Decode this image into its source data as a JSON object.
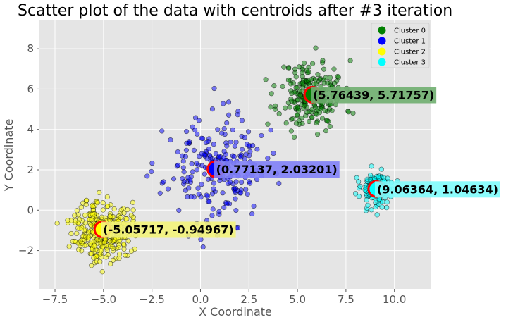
{
  "chart_data": {
    "type": "scatter",
    "title": "Scatter plot of the data with centroids after #3 iteration",
    "xlabel": "X Coordinate",
    "ylabel": "Y Coordinate",
    "xlim": [
      -8.3,
      11.9
    ],
    "ylim": [
      -3.9,
      9.4
    ],
    "xticks": [
      -7.5,
      -5.0,
      -2.5,
      0.0,
      2.5,
      5.0,
      7.5,
      10.0
    ],
    "xtick_labels": [
      "−7.5",
      "−5.0",
      "−2.5",
      "0.0",
      "2.5",
      "5.0",
      "7.5",
      "10.0"
    ],
    "yticks": [
      -2,
      0,
      2,
      4,
      6,
      8
    ],
    "ytick_labels": [
      "−2",
      "0",
      "2",
      "4",
      "6",
      "8"
    ],
    "grid": true,
    "background": "#e5e5e5",
    "legend_position": "top-right",
    "series": [
      {
        "name": "Cluster 0",
        "color": "#008000",
        "center": [
          5.76,
          5.72
        ],
        "spread": [
          0.85,
          0.85
        ],
        "count": 220,
        "seed": 11
      },
      {
        "name": "Cluster 1",
        "color": "#0000ff",
        "center": [
          0.77,
          2.03
        ],
        "spread": [
          1.3,
          1.3
        ],
        "count": 220,
        "seed": 23
      },
      {
        "name": "Cluster 2",
        "color": "#ffff00",
        "center": [
          -5.06,
          -0.95
        ],
        "spread": [
          0.75,
          0.75
        ],
        "count": 300,
        "seed": 37
      },
      {
        "name": "Cluster 3",
        "color": "#00ffff",
        "center": [
          9.06,
          1.05
        ],
        "spread": [
          0.4,
          0.45
        ],
        "count": 160,
        "seed": 53
      }
    ],
    "centroids": [
      {
        "x": 5.76439,
        "y": 5.71757,
        "label": "(5.76439, 5.71757)",
        "color": "#008000",
        "box_color": "#6fae6f"
      },
      {
        "x": 0.77137,
        "y": 2.03201,
        "label": "(0.77137, 2.03201)",
        "color": "#0000ff",
        "box_color": "#7f7ff7"
      },
      {
        "x": -5.05717,
        "y": -0.94967,
        "label": "(-5.05717, -0.94967)",
        "color": "#ffff00",
        "box_color": "#f3f37a"
      },
      {
        "x": 9.06364,
        "y": 1.04634,
        "label": "(9.06364, 1.04634)",
        "color": "#00ffff",
        "box_color": "#7ffcfc"
      }
    ],
    "centroid_ring_color": "#ff0000"
  }
}
